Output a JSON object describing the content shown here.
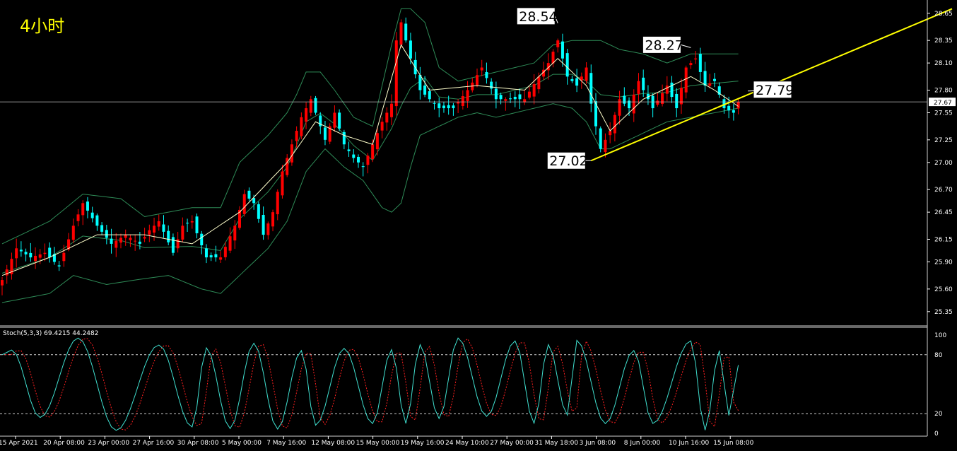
{
  "timeframe_label": "4小时",
  "colors": {
    "background": "#000000",
    "bull_candle": "#ff0000",
    "bear_candle": "#00ffff",
    "bollinger": "#2e8b57",
    "ma": "#ffffcc",
    "trendline": "#ffff00",
    "current_price_line": "#c0c0c0",
    "stoch_main": "#40e0d0",
    "stoch_signal": "#ff2020",
    "stoch_levels": "#cfcfcf",
    "axis": "#ffffff"
  },
  "chart_data": [
    {
      "type": "candlestick",
      "title": "",
      "ylim": [
        25.2,
        28.75
      ],
      "y_ticks": [
        "28.65",
        "28.35",
        "28.10",
        "27.80",
        "27.55",
        "27.25",
        "27.00",
        "26.70",
        "26.45",
        "26.15",
        "25.90",
        "25.60",
        "25.35"
      ],
      "x_ticks": [
        "15 Apr 2021",
        "20 Apr 08:00",
        "23 Apr 00:00",
        "27 Apr 16:00",
        "30 Apr 08:00",
        "5 May 00:00",
        "7 May 16:00",
        "12 May 08:00",
        "15 May 00:00",
        "19 May 16:00",
        "24 May 10:00",
        "27 May 00:00",
        "31 May 18:00",
        "3 Jun 08:00",
        "8 Jun 00:00",
        "10 Jun 16:00",
        "15 Jun 08:00"
      ],
      "current_price": "27.67",
      "price_path": [
        [
          0,
          25.7
        ],
        [
          3,
          26.05
        ],
        [
          6,
          25.95
        ],
        [
          9,
          26.0
        ],
        [
          12,
          25.85
        ],
        [
          15,
          26.3
        ],
        [
          17,
          26.55
        ],
        [
          20,
          26.3
        ],
        [
          23,
          26.1
        ],
        [
          26,
          26.2
        ],
        [
          29,
          26.1
        ],
        [
          31,
          26.25
        ],
        [
          33,
          26.35
        ],
        [
          36,
          26.0
        ],
        [
          38,
          26.3
        ],
        [
          40,
          26.35
        ],
        [
          43,
          25.95
        ],
        [
          46,
          25.95
        ],
        [
          49,
          26.3
        ],
        [
          51,
          26.65
        ],
        [
          53,
          26.55
        ],
        [
          55,
          26.2
        ],
        [
          57,
          26.45
        ],
        [
          59,
          26.9
        ],
        [
          61,
          27.2
        ],
        [
          63,
          27.5
        ],
        [
          65,
          27.7
        ],
        [
          67,
          27.4
        ],
        [
          68,
          27.25
        ],
        [
          70,
          27.55
        ],
        [
          72,
          27.2
        ],
        [
          74,
          27.05
        ],
        [
          76,
          26.95
        ],
        [
          78,
          27.2
        ],
        [
          80,
          27.45
        ],
        [
          82,
          27.65
        ],
        [
          83,
          28.35
        ],
        [
          84,
          28.55
        ],
        [
          86,
          28.15
        ],
        [
          88,
          27.8
        ],
        [
          90,
          27.7
        ],
        [
          92,
          27.6
        ],
        [
          95,
          27.6
        ],
        [
          98,
          27.8
        ],
        [
          101,
          28.05
        ],
        [
          104,
          27.7
        ],
        [
          107,
          27.7
        ],
        [
          110,
          27.7
        ],
        [
          113,
          27.95
        ],
        [
          115,
          28.1
        ],
        [
          117,
          28.35
        ],
        [
          119,
          27.95
        ],
        [
          121,
          27.85
        ],
        [
          123,
          28.05
        ],
        [
          124,
          27.65
        ],
        [
          126,
          27.15
        ],
        [
          128,
          27.35
        ],
        [
          130,
          27.7
        ],
        [
          132,
          27.6
        ],
        [
          134,
          27.9
        ],
        [
          137,
          27.6
        ],
        [
          140,
          27.85
        ],
        [
          142,
          27.6
        ],
        [
          144,
          28.05
        ],
        [
          146,
          28.15
        ],
        [
          148,
          27.85
        ],
        [
          150,
          27.9
        ],
        [
          152,
          27.6
        ],
        [
          154,
          27.55
        ],
        [
          155,
          27.67
        ]
      ],
      "ma": [
        [
          0,
          25.75
        ],
        [
          10,
          25.95
        ],
        [
          20,
          26.2
        ],
        [
          30,
          26.2
        ],
        [
          40,
          26.1
        ],
        [
          50,
          26.45
        ],
        [
          60,
          27.0
        ],
        [
          66,
          27.45
        ],
        [
          72,
          27.3
        ],
        [
          78,
          27.2
        ],
        [
          84,
          28.3
        ],
        [
          90,
          27.8
        ],
        [
          100,
          27.85
        ],
        [
          110,
          27.8
        ],
        [
          117,
          28.15
        ],
        [
          123,
          27.85
        ],
        [
          128,
          27.35
        ],
        [
          135,
          27.7
        ],
        [
          145,
          27.95
        ],
        [
          150,
          27.8
        ],
        [
          155,
          27.62
        ]
      ],
      "bb_upper": [
        [
          0,
          26.1
        ],
        [
          10,
          26.35
        ],
        [
          17,
          26.65
        ],
        [
          25,
          26.6
        ],
        [
          30,
          26.4
        ],
        [
          40,
          26.5
        ],
        [
          46,
          26.5
        ],
        [
          50,
          27.0
        ],
        [
          56,
          27.3
        ],
        [
          60,
          27.55
        ],
        [
          62,
          27.75
        ],
        [
          64,
          28.0
        ],
        [
          67,
          28.0
        ],
        [
          70,
          27.8
        ],
        [
          74,
          27.5
        ],
        [
          78,
          27.4
        ],
        [
          82,
          28.3
        ],
        [
          84,
          28.7
        ],
        [
          86,
          28.7
        ],
        [
          89,
          28.55
        ],
        [
          92,
          28.05
        ],
        [
          96,
          27.9
        ],
        [
          100,
          27.95
        ],
        [
          104,
          28.0
        ],
        [
          108,
          28.05
        ],
        [
          112,
          28.1
        ],
        [
          116,
          28.3
        ],
        [
          120,
          28.35
        ],
        [
          123,
          28.35
        ],
        [
          126,
          28.35
        ],
        [
          130,
          28.25
        ],
        [
          135,
          28.2
        ],
        [
          140,
          28.1
        ],
        [
          145,
          28.2
        ],
        [
          150,
          28.2
        ],
        [
          155,
          28.2
        ]
      ],
      "bb_lower": [
        [
          0,
          25.45
        ],
        [
          10,
          25.55
        ],
        [
          15,
          25.75
        ],
        [
          22,
          25.65
        ],
        [
          28,
          25.7
        ],
        [
          35,
          25.75
        ],
        [
          42,
          25.6
        ],
        [
          46,
          25.55
        ],
        [
          50,
          25.75
        ],
        [
          56,
          26.05
        ],
        [
          60,
          26.35
        ],
        [
          64,
          26.9
        ],
        [
          68,
          27.15
        ],
        [
          72,
          26.95
        ],
        [
          76,
          26.8
        ],
        [
          80,
          26.5
        ],
        [
          82,
          26.45
        ],
        [
          84,
          26.55
        ],
        [
          86,
          26.95
        ],
        [
          88,
          27.3
        ],
        [
          92,
          27.4
        ],
        [
          96,
          27.5
        ],
        [
          100,
          27.55
        ],
        [
          104,
          27.5
        ],
        [
          108,
          27.55
        ],
        [
          112,
          27.6
        ],
        [
          116,
          27.65
        ],
        [
          120,
          27.6
        ],
        [
          123,
          27.45
        ],
        [
          126,
          27.15
        ],
        [
          128,
          27.15
        ],
        [
          132,
          27.25
        ],
        [
          136,
          27.35
        ],
        [
          140,
          27.45
        ],
        [
          145,
          27.5
        ],
        [
          150,
          27.55
        ],
        [
          155,
          27.6
        ]
      ],
      "annotations": [
        {
          "text": "28.54",
          "bar": 117,
          "price": 28.54
        },
        {
          "text": "28.27",
          "bar": 145,
          "price": 28.27
        },
        {
          "text": "27.79",
          "bar": 157,
          "price": 27.79
        },
        {
          "text": "27.02",
          "bar": 124,
          "price": 27.02
        }
      ],
      "trendline": {
        "from": [
          124,
          27.02
        ],
        "to": [
          200,
          28.7
        ]
      }
    },
    {
      "type": "line",
      "title": "Stoch(5,3,3) 69.4215 44.2482",
      "ylim": [
        0,
        100
      ],
      "y_ticks": [
        "100",
        "80",
        "20",
        "0"
      ],
      "levels": [
        20,
        80
      ],
      "peak_bars": [
        2,
        16,
        33,
        43,
        53,
        63,
        72,
        82,
        88,
        96,
        108,
        115,
        121,
        133,
        145,
        151
      ],
      "trough_bars": [
        8,
        24,
        40,
        48,
        58,
        66,
        78,
        85,
        92,
        102,
        112,
        119,
        127,
        137,
        148,
        153
      ]
    }
  ]
}
